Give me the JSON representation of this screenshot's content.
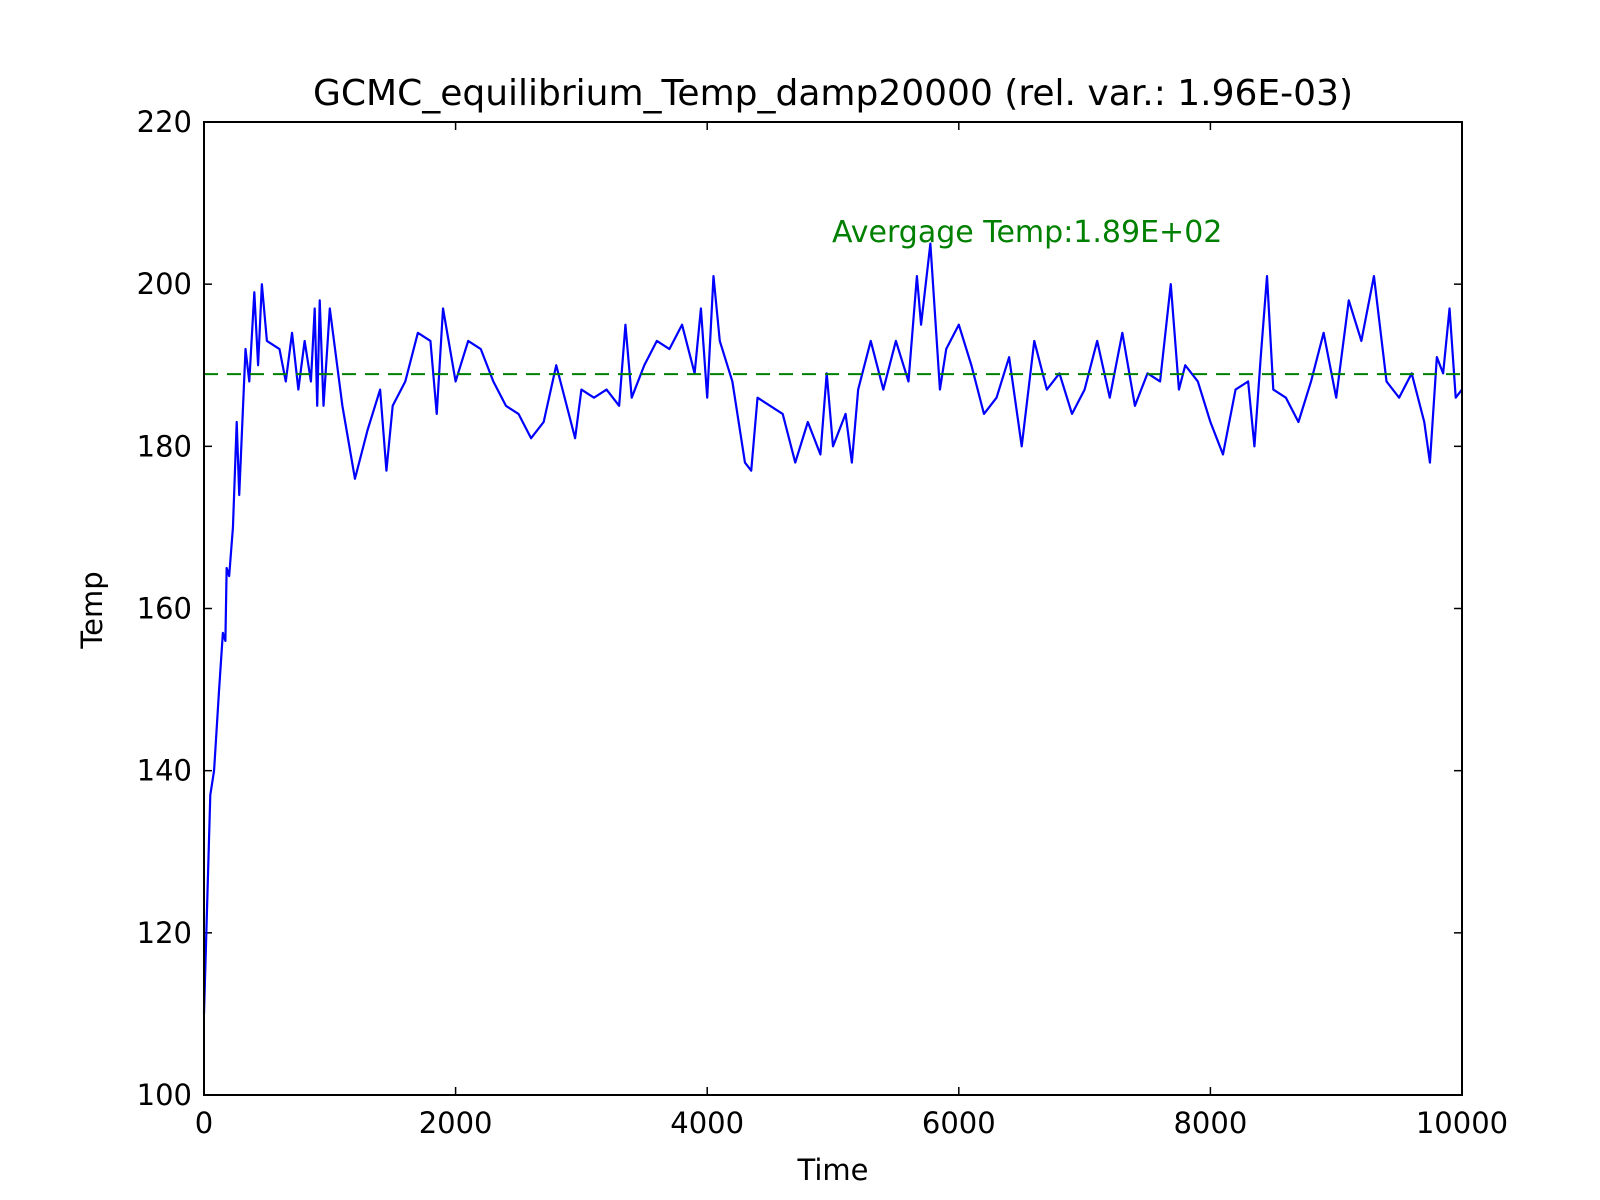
{
  "chart_data": {
    "type": "line",
    "title": "GCMC_equilibrium_Temp_damp20000 (rel. var.: 1.96E-03)",
    "x_label": "Time",
    "y_label": "Temp",
    "x": [
      0,
      50,
      80,
      120,
      150,
      170,
      180,
      200,
      230,
      260,
      280,
      330,
      360,
      400,
      430,
      460,
      500,
      600,
      650,
      700,
      750,
      800,
      850,
      880,
      900,
      920,
      950,
      1000,
      1100,
      1200,
      1300,
      1400,
      1450,
      1500,
      1600,
      1700,
      1800,
      1850,
      1900,
      2000,
      2100,
      2200,
      2300,
      2400,
      2500,
      2600,
      2700,
      2800,
      2900,
      2950,
      3000,
      3100,
      3200,
      3300,
      3350,
      3400,
      3500,
      3600,
      3700,
      3800,
      3900,
      3950,
      4000,
      4050,
      4100,
      4200,
      4300,
      4350,
      4400,
      4500,
      4600,
      4700,
      4800,
      4900,
      4950,
      5000,
      5100,
      5150,
      5200,
      5300,
      5400,
      5500,
      5600,
      5667,
      5700,
      5774,
      5850,
      5900,
      6000,
      6100,
      6200,
      6300,
      6400,
      6500,
      6600,
      6700,
      6800,
      6900,
      7000,
      7100,
      7200,
      7300,
      7400,
      7500,
      7600,
      7685,
      7750,
      7800,
      7900,
      8000,
      8100,
      8200,
      8300,
      8350,
      8400,
      8450,
      8500,
      8600,
      8700,
      8800,
      8900,
      9000,
      9100,
      9200,
      9300,
      9400,
      9500,
      9600,
      9700,
      9745,
      9800,
      9850,
      9901,
      9950,
      10000
    ],
    "series": [
      {
        "name": "Temp",
        "color": "#0000ff",
        "values": [
          110,
          137,
          140,
          150,
          157,
          156,
          165,
          164,
          170,
          183,
          174,
          192,
          188,
          199,
          190,
          200,
          193,
          192,
          188,
          194,
          187,
          193,
          188,
          197,
          185,
          198,
          185,
          197,
          185,
          176,
          182,
          187,
          177,
          185,
          188,
          194,
          193,
          184,
          197,
          188,
          193,
          192,
          188,
          185,
          184,
          181,
          183,
          190,
          184,
          181,
          187,
          186,
          187,
          185,
          195,
          186,
          190,
          193,
          192,
          195,
          189,
          197,
          186,
          201,
          193,
          188,
          178,
          177,
          186,
          185,
          184,
          178,
          183,
          179,
          189,
          180,
          184,
          178,
          187,
          193,
          187,
          193,
          188,
          201,
          195,
          205,
          187,
          192,
          195,
          190,
          184,
          186,
          191,
          180,
          193,
          187,
          189,
          184,
          187,
          193,
          186,
          194,
          185,
          189,
          188,
          200,
          187,
          190,
          188,
          183,
          179,
          187,
          188,
          180,
          191,
          201,
          187,
          186,
          183,
          188,
          194,
          186,
          198,
          193,
          201,
          188,
          186,
          189,
          183,
          178,
          191,
          189,
          197,
          186,
          187
        ]
      }
    ],
    "average": 188.9,
    "average_color": "#008000",
    "annotation": "Avergage Temp:1.89E+02",
    "xlim": [
      0,
      10000
    ],
    "ylim": [
      100,
      220
    ],
    "xticks": [
      0,
      2000,
      4000,
      6000,
      8000,
      10000
    ],
    "yticks": [
      100,
      120,
      140,
      160,
      180,
      200,
      220
    ]
  }
}
